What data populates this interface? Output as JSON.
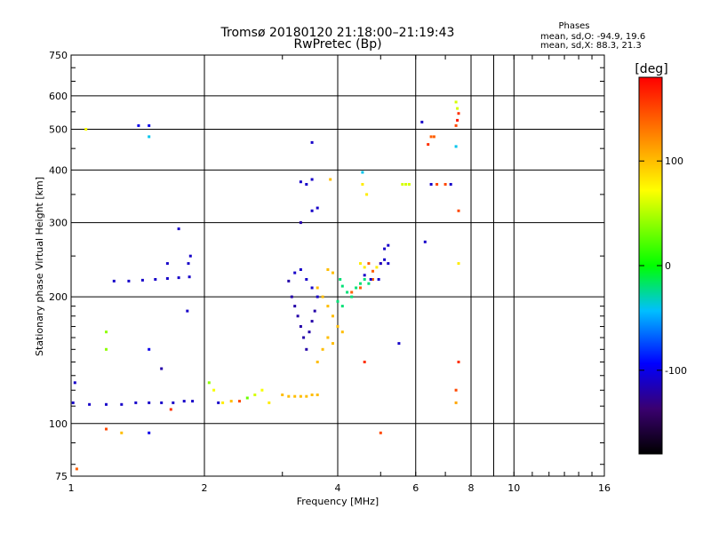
{
  "chart_data": {
    "type": "scatter",
    "title": "Tromsø 20180120 21:18:00–21:19:43",
    "subtitle": "RwPretec (Bp)",
    "xlabel": "Frequency [MHz]",
    "ylabel": "Stationary phase Virtual Height [km]",
    "x_scale": "log2",
    "y_scale": "log",
    "xlim": [
      1,
      16
    ],
    "ylim": [
      75,
      750
    ],
    "x_ticks": [
      1,
      2,
      4,
      6,
      8,
      10,
      16
    ],
    "y_ticks": [
      75,
      100,
      200,
      300,
      400,
      500,
      600,
      750
    ],
    "grid": true,
    "phases_box": {
      "title": "Phases",
      "line_o": "mean, sd,O:  -94.9, 19.6",
      "line_x": "mean, sd,X:  88.3, 21.3"
    },
    "colorbar": {
      "label": "[deg]",
      "range": [
        -180,
        180
      ],
      "ticks": [
        100,
        0,
        -100
      ],
      "tick_labels": [
        "100",
        "0",
        "-100"
      ]
    },
    "series": [
      {
        "points": [
          [
            1.01,
            112,
            -110
          ],
          [
            1.1,
            111,
            -110
          ],
          [
            1.2,
            111,
            -110
          ],
          [
            1.3,
            111,
            -110
          ],
          [
            1.4,
            112,
            -110
          ],
          [
            1.5,
            112,
            -110
          ],
          [
            1.6,
            112,
            -110
          ],
          [
            1.7,
            112,
            -110
          ],
          [
            1.8,
            113,
            -110
          ],
          [
            1.88,
            113,
            -110
          ],
          [
            1.25,
            218,
            -110
          ],
          [
            1.35,
            218,
            -110
          ],
          [
            1.45,
            219,
            -110
          ],
          [
            1.55,
            220,
            -110
          ],
          [
            1.65,
            221,
            -110
          ],
          [
            1.75,
            222,
            -110
          ],
          [
            1.85,
            223,
            -110
          ],
          [
            1.84,
            240,
            -110
          ],
          [
            1.86,
            250,
            -110
          ],
          [
            1.75,
            290,
            -110
          ],
          [
            1.42,
            510,
            -100
          ],
          [
            1.5,
            510,
            -100
          ],
          [
            1.5,
            480,
            -40
          ],
          [
            1.02,
            125,
            -110
          ],
          [
            1.5,
            150,
            -100
          ],
          [
            1.6,
            135,
            -120
          ],
          [
            1.83,
            185,
            -110
          ],
          [
            1.65,
            240,
            -110
          ],
          [
            1.03,
            78,
            140
          ],
          [
            1.08,
            500,
            70
          ],
          [
            1.2,
            97,
            150
          ],
          [
            1.3,
            95,
            100
          ],
          [
            1.5,
            95,
            -100
          ],
          [
            1.68,
            108,
            160
          ],
          [
            1.2,
            165,
            40
          ],
          [
            1.2,
            150,
            40
          ],
          [
            2.05,
            125,
            40
          ],
          [
            2.1,
            120,
            70
          ],
          [
            2.15,
            112,
            -110
          ],
          [
            2.2,
            112,
            80
          ],
          [
            2.3,
            113,
            100
          ],
          [
            2.4,
            113,
            150
          ],
          [
            2.5,
            115,
            30
          ],
          [
            2.6,
            117,
            60
          ],
          [
            2.7,
            120,
            70
          ],
          [
            2.8,
            112,
            80
          ],
          [
            3.0,
            117,
            100
          ],
          [
            3.1,
            116,
            100
          ],
          [
            3.2,
            116,
            100
          ],
          [
            3.3,
            116,
            100
          ],
          [
            3.4,
            116,
            100
          ],
          [
            3.5,
            117,
            100
          ],
          [
            3.6,
            117,
            100
          ],
          [
            3.1,
            218,
            -120
          ],
          [
            3.15,
            200,
            -120
          ],
          [
            3.2,
            190,
            -120
          ],
          [
            3.25,
            180,
            -120
          ],
          [
            3.3,
            170,
            -120
          ],
          [
            3.35,
            160,
            -120
          ],
          [
            3.4,
            150,
            -120
          ],
          [
            3.45,
            165,
            -120
          ],
          [
            3.5,
            175,
            -120
          ],
          [
            3.55,
            185,
            -120
          ],
          [
            3.2,
            228,
            -110
          ],
          [
            3.3,
            232,
            -110
          ],
          [
            3.4,
            220,
            -110
          ],
          [
            3.5,
            210,
            -110
          ],
          [
            3.6,
            200,
            -110
          ],
          [
            3.3,
            375,
            -110
          ],
          [
            3.4,
            370,
            -110
          ],
          [
            3.5,
            380,
            -110
          ],
          [
            3.5,
            320,
            -110
          ],
          [
            3.6,
            325,
            -110
          ],
          [
            3.5,
            465,
            -110
          ],
          [
            3.3,
            300,
            -120
          ],
          [
            3.6,
            210,
            100
          ],
          [
            3.7,
            200,
            100
          ],
          [
            3.8,
            190,
            100
          ],
          [
            3.9,
            180,
            100
          ],
          [
            4.0,
            170,
            100
          ],
          [
            4.1,
            165,
            100
          ],
          [
            3.8,
            160,
            100
          ],
          [
            3.7,
            150,
            100
          ],
          [
            3.6,
            140,
            100
          ],
          [
            3.9,
            155,
            100
          ],
          [
            3.85,
            380,
            100
          ],
          [
            3.8,
            232,
            100
          ],
          [
            3.9,
            228,
            100
          ],
          [
            4.05,
            220,
            -20
          ],
          [
            4.1,
            212,
            -20
          ],
          [
            4.2,
            205,
            -20
          ],
          [
            4.3,
            200,
            -20
          ],
          [
            4.4,
            210,
            -20
          ],
          [
            4.5,
            215,
            -20
          ],
          [
            4.6,
            220,
            -20
          ],
          [
            4.7,
            215,
            -20
          ],
          [
            4.0,
            195,
            -20
          ],
          [
            4.1,
            190,
            -20
          ],
          [
            4.5,
            240,
            80
          ],
          [
            4.6,
            235,
            80
          ],
          [
            4.7,
            240,
            140
          ],
          [
            4.8,
            230,
            140
          ],
          [
            4.9,
            235,
            80
          ],
          [
            5.0,
            240,
            140
          ],
          [
            4.8,
            220,
            140
          ],
          [
            4.5,
            210,
            140
          ],
          [
            4.3,
            205,
            140
          ],
          [
            4.55,
            370,
            80
          ],
          [
            4.55,
            395,
            -40
          ],
          [
            4.65,
            350,
            80
          ],
          [
            5.0,
            240,
            -110
          ],
          [
            5.1,
            245,
            -110
          ],
          [
            5.2,
            240,
            -110
          ],
          [
            5.1,
            260,
            -110
          ],
          [
            4.6,
            225,
            -110
          ],
          [
            4.75,
            220,
            -110
          ],
          [
            4.95,
            220,
            -110
          ],
          [
            5.6,
            370,
            60
          ],
          [
            5.7,
            370,
            60
          ],
          [
            5.8,
            370,
            60
          ],
          [
            5.2,
            265,
            -110
          ],
          [
            5.5,
            155,
            -110
          ],
          [
            4.6,
            140,
            160
          ],
          [
            5.0,
            95,
            150
          ],
          [
            6.2,
            520,
            -110
          ],
          [
            6.4,
            460,
            160
          ],
          [
            6.5,
            480,
            140
          ],
          [
            6.6,
            480,
            140
          ],
          [
            6.5,
            370,
            -110
          ],
          [
            6.7,
            370,
            150
          ],
          [
            7.0,
            370,
            150
          ],
          [
            7.2,
            370,
            -110
          ],
          [
            6.3,
            270,
            -110
          ],
          [
            7.4,
            580,
            60
          ],
          [
            7.45,
            560,
            60
          ],
          [
            7.5,
            545,
            160
          ],
          [
            7.45,
            525,
            170
          ],
          [
            7.4,
            510,
            150
          ],
          [
            7.4,
            455,
            -40
          ],
          [
            7.5,
            320,
            150
          ],
          [
            7.5,
            240,
            80
          ],
          [
            7.5,
            140,
            160
          ],
          [
            7.4,
            120,
            150
          ],
          [
            7.4,
            112,
            110
          ]
        ]
      }
    ]
  }
}
